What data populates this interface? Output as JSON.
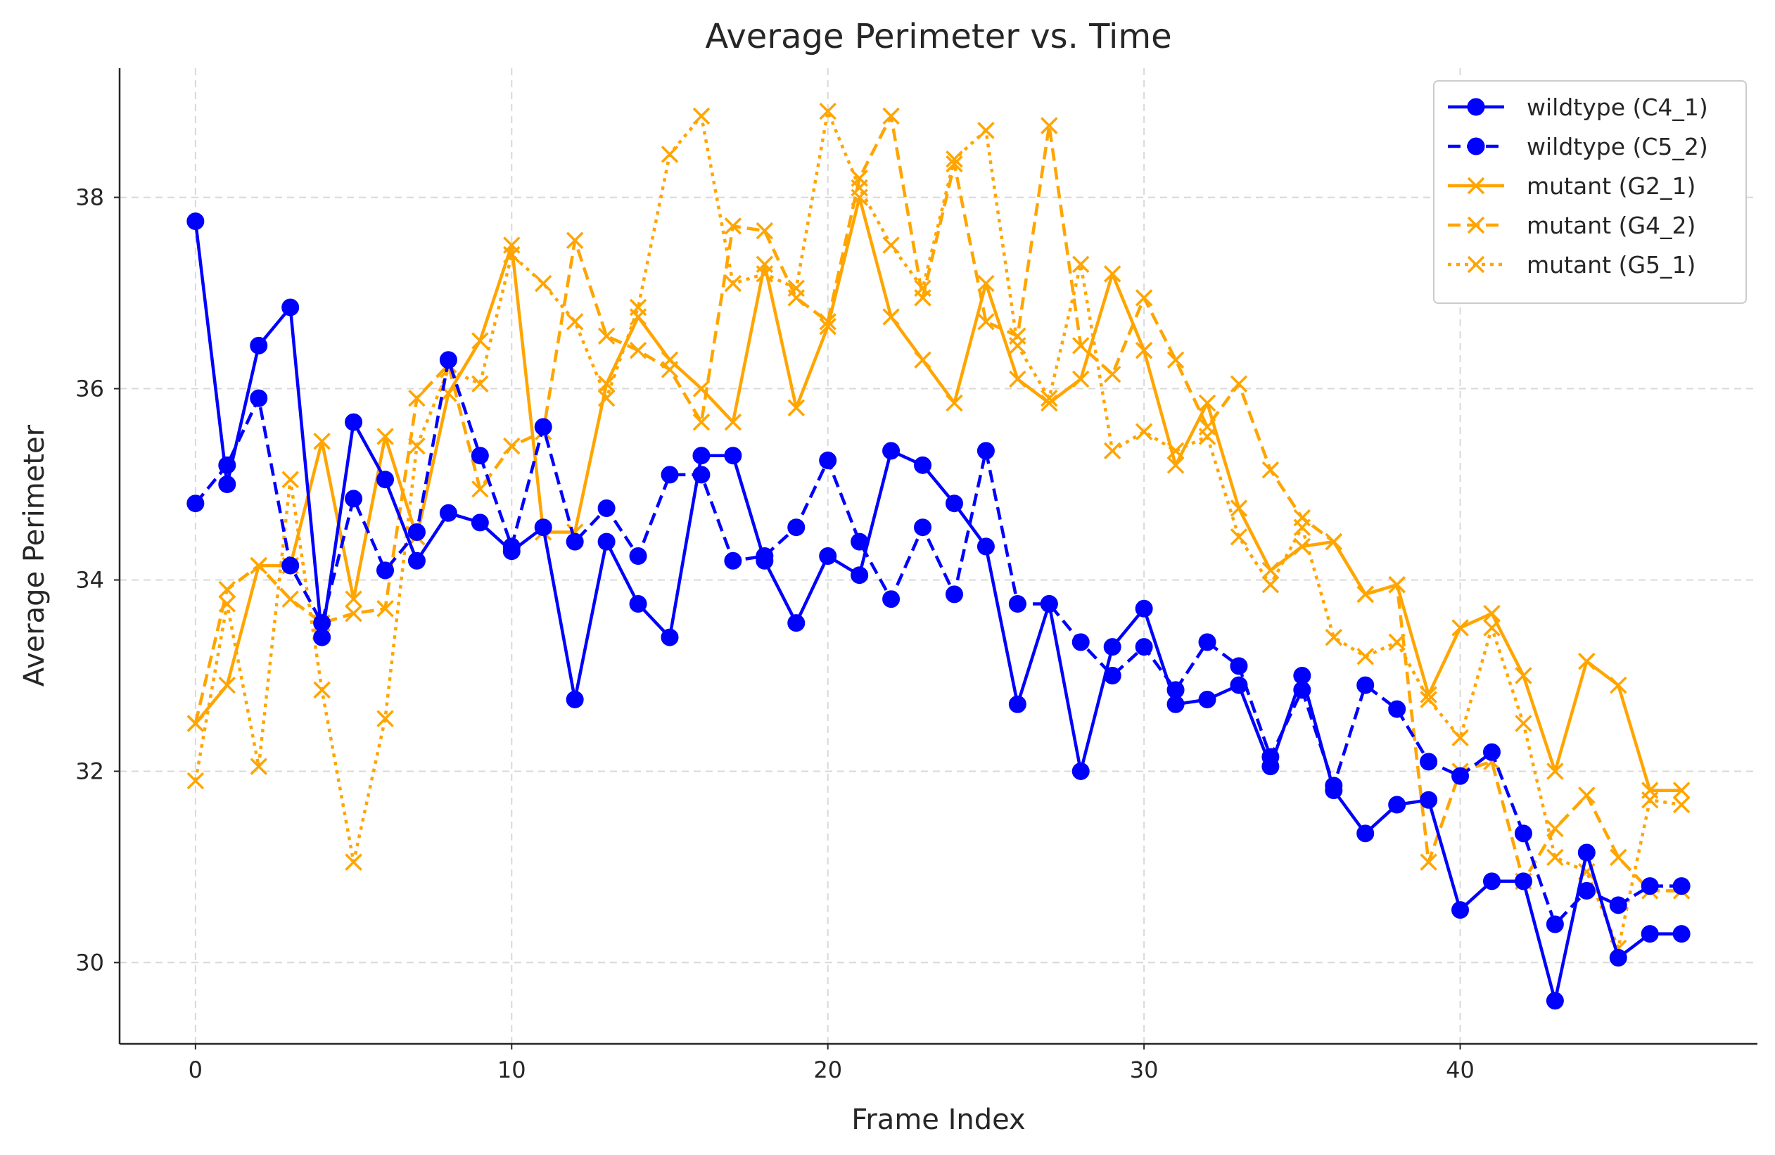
{
  "chart_data": {
    "type": "line",
    "title": "Average Perimeter vs. Time",
    "xlabel": "Frame Index",
    "ylabel": "Average Perimeter",
    "xlim": [
      -2.4,
      49.4
    ],
    "ylim": [
      29.15,
      39.35
    ],
    "xticks": [
      0,
      10,
      20,
      30,
      40
    ],
    "yticks": [
      30,
      32,
      34,
      36,
      38
    ],
    "grid": true,
    "legend_position": "top-right",
    "x": [
      0,
      1,
      2,
      3,
      4,
      5,
      6,
      7,
      8,
      9,
      10,
      11,
      12,
      13,
      14,
      15,
      16,
      17,
      18,
      19,
      20,
      21,
      22,
      23,
      24,
      25,
      26,
      27,
      28,
      29,
      30,
      31,
      32,
      33,
      34,
      35,
      36,
      37,
      38,
      39,
      40,
      41,
      42,
      43,
      44,
      45,
      46,
      47
    ],
    "series": [
      {
        "name": "wildtype (C4_1)",
        "color": "#0000ff",
        "dash": "solid",
        "marker": "circle",
        "values": [
          37.75,
          35.0,
          36.45,
          36.85,
          33.4,
          35.65,
          35.05,
          34.2,
          34.7,
          34.6,
          34.3,
          34.55,
          32.75,
          34.4,
          33.75,
          33.4,
          35.3,
          35.3,
          34.2,
          33.55,
          34.25,
          34.05,
          35.35,
          35.2,
          34.8,
          34.35,
          32.7,
          33.75,
          32.0,
          33.3,
          33.7,
          32.7,
          32.75,
          32.9,
          32.05,
          33.0,
          31.8,
          31.35,
          31.65,
          31.7,
          30.55,
          30.85,
          30.85,
          29.6,
          31.15,
          30.05,
          30.3,
          30.3
        ]
      },
      {
        "name": "wildtype (C5_2)",
        "color": "#0000ff",
        "dash": "dashed",
        "marker": "circle",
        "values": [
          34.8,
          35.2,
          35.9,
          34.15,
          33.55,
          34.85,
          34.1,
          34.5,
          36.3,
          35.3,
          34.35,
          35.6,
          34.4,
          34.75,
          34.25,
          35.1,
          35.1,
          34.2,
          34.25,
          34.55,
          35.25,
          34.4,
          33.8,
          34.55,
          33.85,
          35.35,
          33.75,
          33.75,
          33.35,
          33.0,
          33.3,
          32.85,
          33.35,
          33.1,
          32.15,
          32.85,
          31.85,
          32.9,
          32.65,
          32.1,
          31.95,
          32.2,
          31.35,
          30.4,
          30.75,
          30.6,
          30.8,
          30.8
        ]
      },
      {
        "name": "mutant (G2_1)",
        "color": "#ffa500",
        "dash": "solid",
        "marker": "x",
        "values": [
          32.5,
          32.9,
          34.15,
          34.15,
          35.45,
          33.8,
          35.5,
          34.45,
          35.95,
          36.5,
          37.5,
          34.5,
          34.5,
          36.05,
          36.75,
          36.3,
          36.0,
          35.65,
          37.3,
          35.8,
          36.65,
          38.0,
          36.75,
          36.3,
          35.85,
          37.1,
          36.1,
          35.85,
          36.1,
          37.2,
          36.4,
          35.2,
          35.85,
          34.75,
          34.1,
          34.35,
          34.4,
          33.85,
          33.95,
          32.8,
          33.5,
          33.65,
          33.0,
          32.0,
          33.15,
          32.9,
          31.8,
          31.8
        ]
      },
      {
        "name": "mutant (G4_2)",
        "color": "#ffa500",
        "dash": "dashed",
        "marker": "x",
        "values": [
          32.5,
          33.9,
          34.15,
          33.8,
          33.55,
          33.65,
          33.7,
          35.9,
          36.25,
          34.95,
          35.4,
          35.55,
          37.55,
          36.55,
          36.4,
          36.2,
          35.65,
          37.7,
          37.65,
          36.95,
          36.7,
          38.2,
          38.85,
          36.95,
          38.35,
          36.7,
          36.55,
          38.75,
          36.45,
          36.15,
          36.95,
          36.3,
          35.6,
          36.05,
          35.15,
          34.65,
          34.4,
          33.85,
          33.95,
          31.05,
          32.0,
          32.1,
          30.85,
          31.4,
          31.75,
          31.1,
          30.75,
          30.75
        ]
      },
      {
        "name": "mutant (G5_1)",
        "color": "#ffa500",
        "dash": "dotted",
        "marker": "x",
        "values": [
          31.9,
          33.75,
          32.05,
          35.05,
          32.85,
          31.05,
          32.55,
          35.4,
          36.2,
          36.05,
          37.4,
          37.1,
          36.7,
          35.9,
          36.85,
          38.45,
          38.85,
          37.1,
          37.2,
          37.05,
          38.9,
          38.1,
          37.5,
          37.05,
          38.4,
          38.7,
          36.45,
          35.9,
          37.3,
          35.35,
          35.55,
          35.35,
          35.5,
          34.45,
          33.95,
          34.55,
          33.4,
          33.2,
          33.35,
          32.75,
          32.35,
          33.5,
          32.5,
          31.1,
          30.95,
          30.15,
          31.7,
          31.65
        ]
      }
    ]
  }
}
